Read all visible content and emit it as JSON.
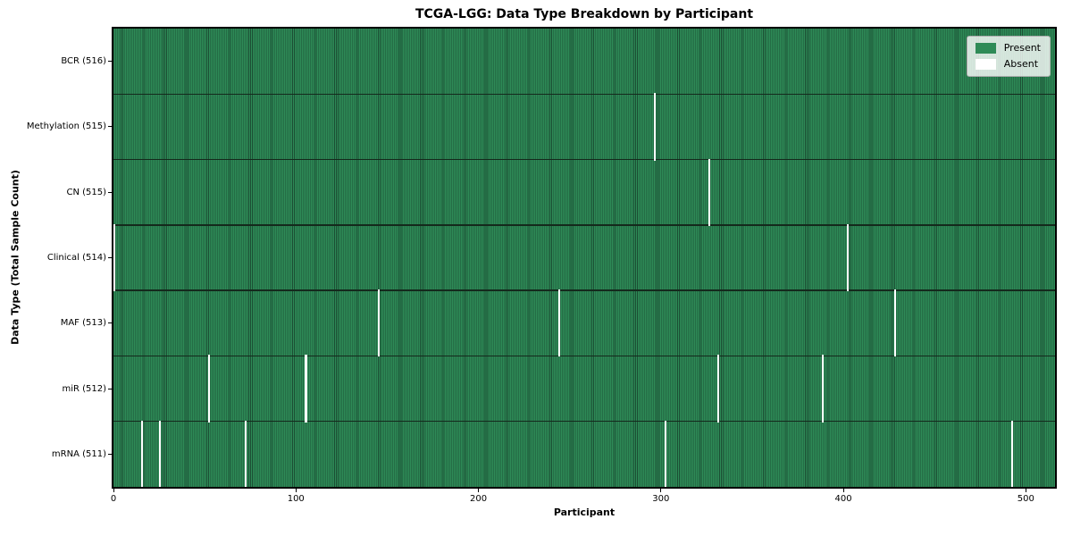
{
  "chart_data": {
    "type": "heatmap",
    "title": "TCGA-LGG: Data Type Breakdown by Participant",
    "xlabel": "Participant",
    "ylabel": "Data Type (Total Sample Count)",
    "n_participants": 516,
    "xlim": [
      0,
      516
    ],
    "x_ticks": [
      0,
      100,
      200,
      300,
      400,
      500
    ],
    "grid": false,
    "legend_position": "upper right",
    "legend_items": [
      {
        "label": "Present",
        "color": "#2E8B57"
      },
      {
        "label": "Absent",
        "color": "#FFFFFF"
      }
    ],
    "colors": {
      "present_fill": "#2E8B57",
      "present_edge": "#1B4D33",
      "absent_fill": "#FFFFFF",
      "row_separator": "#14291C",
      "axis_line": "#000000",
      "figure_background": "#FFFFFF",
      "legend_background": "#DFE7DF",
      "legend_border": "#ADADAD"
    },
    "rows": [
      {
        "name": "BCR",
        "label": "BCR (516)",
        "present_count": 516,
        "absent_participants": []
      },
      {
        "name": "Methylation",
        "label": "Methylation (515)",
        "present_count": 515,
        "absent_participants": [
          296
        ]
      },
      {
        "name": "CN",
        "label": "CN (515)",
        "present_count": 515,
        "absent_participants": [
          326
        ]
      },
      {
        "name": "Clinical",
        "label": "Clinical (514)",
        "present_count": 514,
        "absent_participants": [
          0,
          402
        ]
      },
      {
        "name": "MAF",
        "label": "MAF (513)",
        "present_count": 513,
        "absent_participants": [
          145,
          244,
          428
        ]
      },
      {
        "name": "miR",
        "label": "miR (512)",
        "present_count": 512,
        "absent_participants": [
          52,
          105,
          331,
          388
        ]
      },
      {
        "name": "mRNA",
        "label": "mRNA (511)",
        "present_count": 511,
        "absent_participants": [
          15,
          25,
          72,
          302,
          492
        ]
      }
    ]
  }
}
